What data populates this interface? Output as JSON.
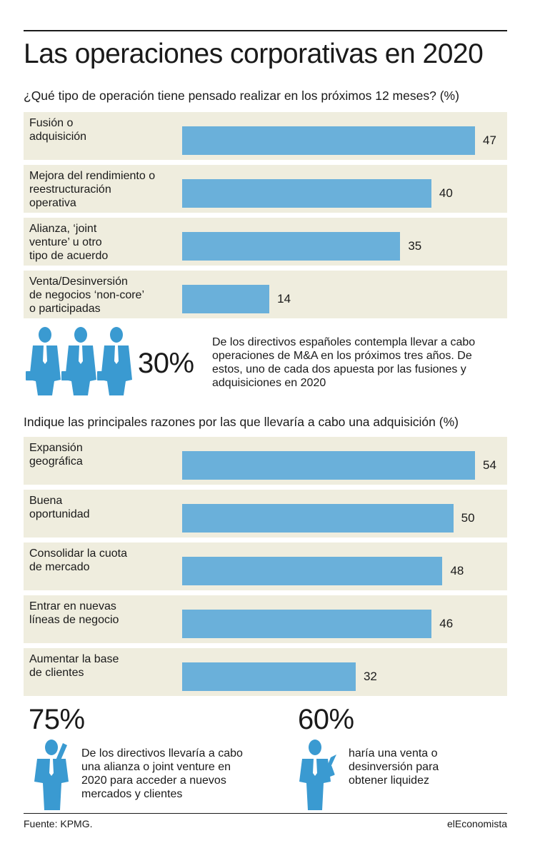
{
  "title": "Las operaciones corporativas en 2020",
  "colors": {
    "bar": "#6ab0da",
    "row_bg": "#efedde",
    "icon": "#3a9ad1"
  },
  "chart_data": [
    {
      "type": "bar",
      "orientation": "horizontal",
      "title": "¿Qué tipo de operación tiene pensado realizar en los próximos 12 meses? (%)",
      "categories": [
        "Fusión o\nadquisición",
        "Mejora del rendimiento o\nreestructuración\noperativa",
        "Alianza, ‘joint\nventure’ u otro\ntipo de acuerdo",
        "Venta/Desinversión\nde negocios ‘non-core’\no participadas"
      ],
      "values": [
        47,
        40,
        35,
        14
      ],
      "xlim": [
        0,
        47
      ]
    },
    {
      "type": "bar",
      "orientation": "horizontal",
      "title": "Indique las principales razones por las que llevaría a cabo una adquisición (%)",
      "categories": [
        "Expansión\ngeográfica",
        "Buena\noportunidad",
        "Consolidar la cuota\nde mercado",
        "Entrar en nuevas\nlíneas de negocio",
        "Aumentar la base\nde clientes"
      ],
      "values": [
        54,
        50,
        48,
        46,
        32
      ],
      "xlim": [
        0,
        54
      ]
    }
  ],
  "callout_1": {
    "value": "30%",
    "text": "De los directivos españoles contempla llevar a cabo operaciones de M&A en los próximos tres años. De estos, uno de cada dos apuesta por las fusiones y adquisiciones en 2020"
  },
  "callout_2": {
    "value": "75%",
    "text": "De los directivos llevaría a cabo una alianza o joint venture en 2020 para acceder a nuevos mercados y clientes"
  },
  "callout_3": {
    "value": "60%",
    "text": "haría una venta o desinversión para obtener liquidez"
  },
  "footer": {
    "source": "Fuente: KPMG.",
    "brand": "elEconomista"
  },
  "icons": [
    "businessman-with-briefcase-icon",
    "businessman-on-phone-icon",
    "businessman-writing-icon"
  ]
}
